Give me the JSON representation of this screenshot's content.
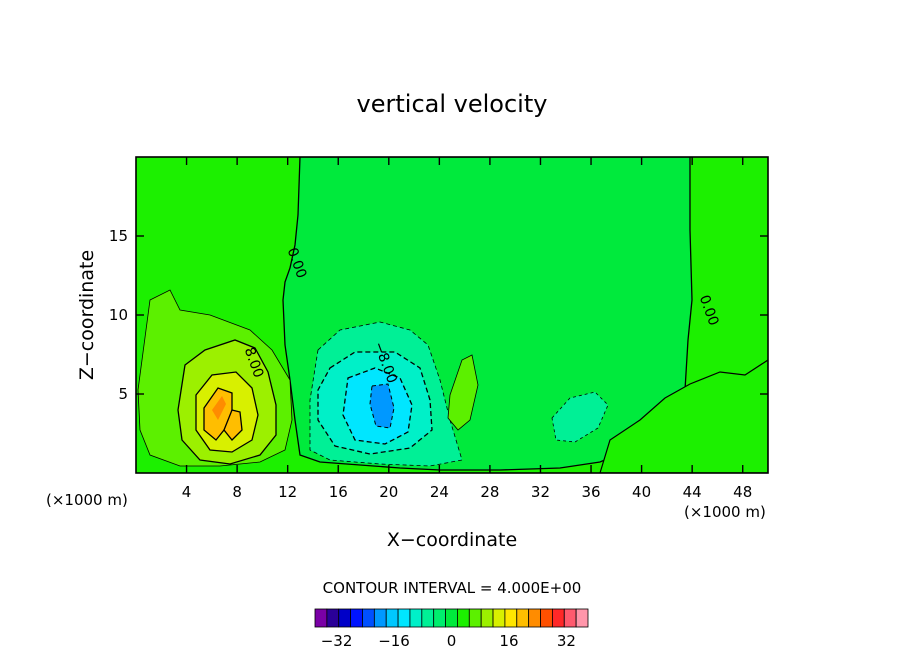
{
  "chart_data": {
    "type": "heatmap",
    "title": "vertical velocity",
    "xlabel": "X−coordinate",
    "ylabel": "Z−coordinate",
    "x_units_left": "(×1000 m)",
    "x_units_right": "(×1000 m)",
    "xlim": [
      0,
      50
    ],
    "ylim": [
      0,
      20
    ],
    "x_ticks": [
      4,
      8,
      12,
      16,
      20,
      24,
      28,
      32,
      36,
      40,
      44,
      48
    ],
    "y_ticks": [
      5,
      10,
      15
    ],
    "contour_interval_text": "CONTOUR INTERVAL = 4.000E+00",
    "contour_labels": [
      {
        "text": "0.00",
        "x": 12.4,
        "y": 13.2
      },
      {
        "text": "8.00",
        "x": 9.0,
        "y": 6.9
      },
      {
        "text": "−8.00",
        "x": 19.4,
        "y": 6.9
      },
      {
        "text": "0.00",
        "x": 45.0,
        "y": 10.2
      }
    ],
    "features": [
      {
        "name": "updraft",
        "x": 7.0,
        "z": 4.0,
        "peak": 20.0
      },
      {
        "name": "downdraft",
        "x": 19.2,
        "z": 4.5,
        "peak": -16.0
      }
    ],
    "colorbar": {
      "min": -38,
      "max": 38,
      "step": 4,
      "tick_values": [
        -32,
        -16,
        0,
        16,
        32
      ],
      "tick_labels": [
        "−32",
        "−16",
        "0",
        "16",
        "32"
      ],
      "colors": [
        "#7a00a6",
        "#2a0098",
        "#0000c8",
        "#0014ff",
        "#0050ff",
        "#0098ff",
        "#00c8ff",
        "#00e6ff",
        "#00f0c8",
        "#00f096",
        "#00ee6e",
        "#00ea3c",
        "#1cf000",
        "#5cf000",
        "#9cf000",
        "#d8f000",
        "#ffe600",
        "#ffbe00",
        "#ff8c00",
        "#ff5000",
        "#ff2828",
        "#ff5a6e",
        "#ff96aa"
      ]
    }
  }
}
